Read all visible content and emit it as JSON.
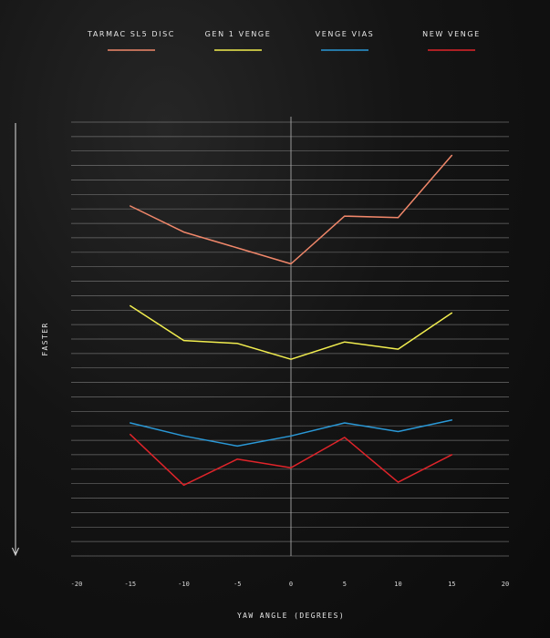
{
  "chart_data": {
    "type": "line",
    "title": "",
    "xlabel": "YAW ANGLE (DEGREES)",
    "ylabel": "FASTER",
    "xlim": [
      -20,
      20
    ],
    "x_ticks": [
      "-20",
      "-15",
      "-10",
      "-5",
      "0",
      "5",
      "10",
      "15",
      "20"
    ],
    "ylim": [
      0,
      30
    ],
    "y_direction": "down = faster",
    "grid": "horizontal lines",
    "legend_position": "top",
    "x": [
      -15,
      -10,
      -5,
      0,
      5,
      10,
      15
    ],
    "series": [
      {
        "name": "TARMAC SL5 DISC",
        "color": "#f0876a",
        "values": [
          24.2,
          22.4,
          21.3,
          20.2,
          23.5,
          23.4,
          27.7
        ]
      },
      {
        "name": "GEN 1 VENGE",
        "color": "#f2ee4f",
        "values": [
          17.3,
          14.9,
          14.7,
          13.6,
          14.8,
          14.3,
          16.8
        ]
      },
      {
        "name": "VENGE VIAS",
        "color": "#2a98d6",
        "values": [
          9.2,
          8.3,
          7.6,
          8.3,
          9.2,
          8.6,
          9.4
        ]
      },
      {
        "name": "NEW VENGE",
        "color": "#e0242a",
        "values": [
          8.4,
          4.9,
          6.7,
          6.1,
          8.2,
          5.1,
          7.0
        ]
      }
    ]
  }
}
